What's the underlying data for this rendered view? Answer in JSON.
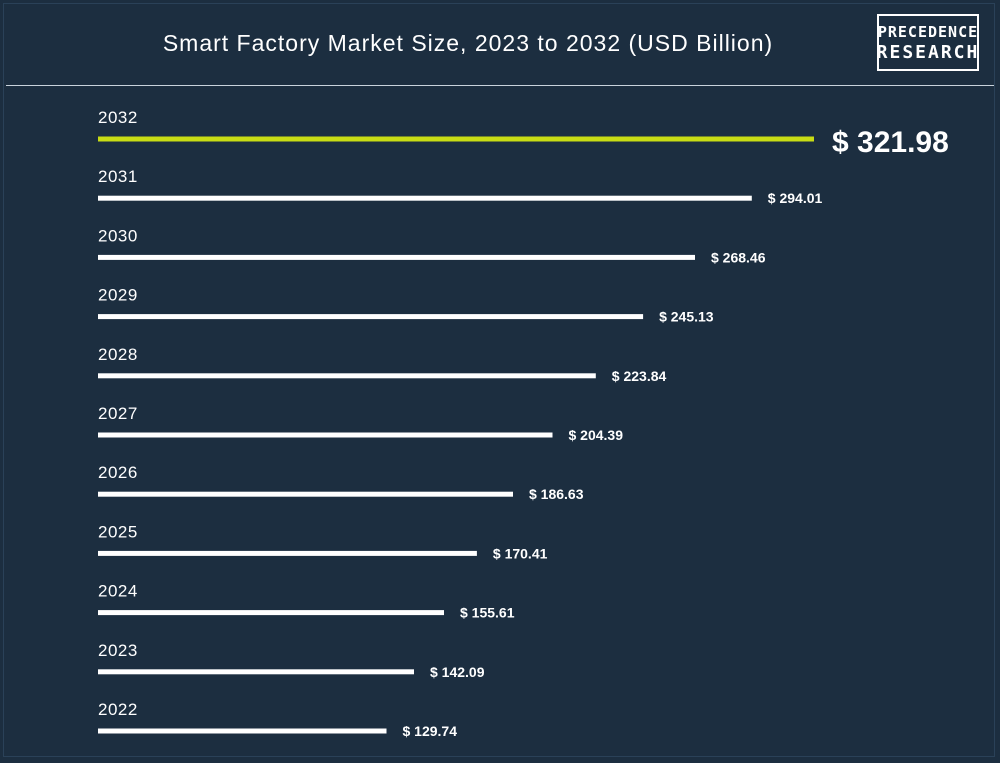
{
  "chart_data": {
    "type": "bar",
    "orientation": "horizontal",
    "title": "Smart Factory Market Size, 2023 to 2032 (USD Billion)",
    "categories": [
      "2032",
      "2031",
      "2030",
      "2029",
      "2028",
      "2027",
      "2026",
      "2025",
      "2024",
      "2023",
      "2022"
    ],
    "values": [
      321.98,
      294.01,
      268.46,
      245.13,
      223.84,
      204.39,
      186.63,
      170.41,
      155.61,
      142.09,
      129.74
    ],
    "value_labels": [
      "$ 321.98",
      "$ 294.01",
      "$ 268.46",
      "$ 245.13",
      "$ 223.84",
      "$ 204.39",
      "$ 186.63",
      "$ 170.41",
      "$ 155.61",
      "$ 142.09",
      "$ 129.74"
    ],
    "highlight_category": "2032",
    "xlabel": "",
    "ylabel": "",
    "grid": false,
    "legend": "none"
  },
  "logo": {
    "line1": "PRECEDENCE",
    "line2": "RESEARCH"
  },
  "colors": {
    "background": "#1c2e40",
    "bar": "#ffffff",
    "highlight_bar": "#c8dc14",
    "text": "#ffffff"
  }
}
